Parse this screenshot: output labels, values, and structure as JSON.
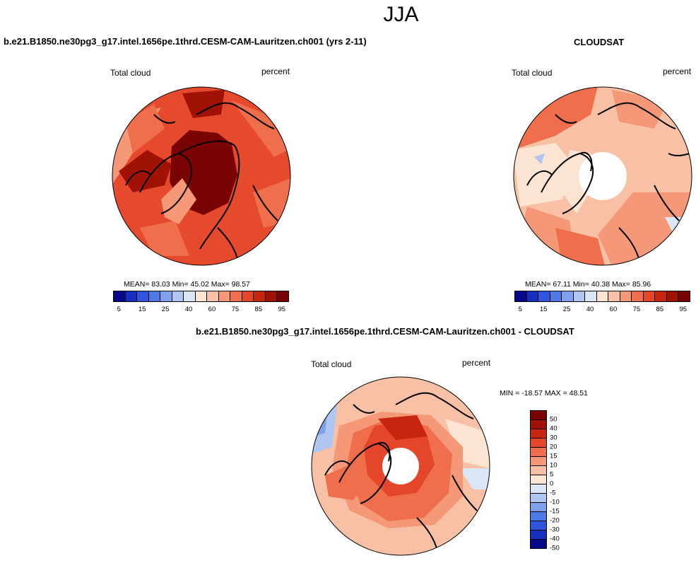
{
  "page": {
    "season": "JJA",
    "diff_title": "b.e21.B1850.ne30pg3_g17.intel.1656pe.1thrd.CESM-CAM-Lauritzen.ch001 - CLOUDSAT"
  },
  "panels": [
    {
      "title": "b.e21.B1850.ne30pg3_g17.intel.1656pe.1thrd.CESM-CAM-Lauritzen.ch001 (yrs 2-11)",
      "variable": "Total cloud",
      "units": "percent",
      "mean": "83.03",
      "min": "45.02",
      "max": "98.57",
      "stats_text": "MEAN=  83.03  Min=  45.02  Max=  98.57"
    },
    {
      "title": "CLOUDSAT",
      "variable": "Total cloud",
      "units": "percent",
      "mean": "67.11",
      "min": "40.38",
      "max": "85.96",
      "stats_text": "MEAN=  67.11  Min=  40.38  Max=  85.96"
    },
    {
      "variable": "Total cloud",
      "units": "percent",
      "min": "-18.57",
      "max": "48.51",
      "stats_text": "MIN = -18.57 MAX =  48.51"
    }
  ],
  "colorbar_abs": {
    "colors": [
      "#08088a",
      "#1530bf",
      "#2e55dc",
      "#4f7ae6",
      "#7fa0ec",
      "#b0c6f2",
      "#dbe6f7",
      "#fbe4d2",
      "#f8c0a4",
      "#f59878",
      "#ef6e4c",
      "#e4462a",
      "#c8250e",
      "#a01205",
      "#7a0303"
    ],
    "labels": [
      "5",
      "15",
      "25",
      "40",
      "60",
      "75",
      "85",
      "95"
    ]
  },
  "colorbar_diff": {
    "colors": [
      "#7a0303",
      "#a01205",
      "#c8250e",
      "#e4462a",
      "#ef6e4c",
      "#f59878",
      "#f8c0a4",
      "#fbe4d2",
      "#dbe6f7",
      "#b0c6f2",
      "#7fa0ec",
      "#4f7ae6",
      "#2e55dc",
      "#1530bf",
      "#08088a"
    ],
    "labels": [
      "50",
      "40",
      "30",
      "20",
      "15",
      "10",
      "5",
      "0",
      "-5",
      "-10",
      "-15",
      "-20",
      "-30",
      "-40",
      "-50"
    ]
  }
}
